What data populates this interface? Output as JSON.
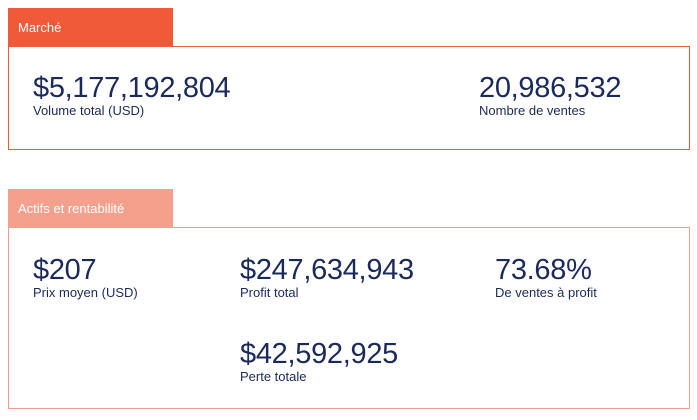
{
  "market": {
    "tab_label": "Marché",
    "total_volume": {
      "value": "$5,177,192,804",
      "label": "Volume total (USD)"
    },
    "sales_count": {
      "value": "20,986,532",
      "label": "Nombre de ventes"
    }
  },
  "assets": {
    "tab_label": "Actifs et rentabilité",
    "avg_price": {
      "value": "$207",
      "label": "Prix moyen (USD)"
    },
    "total_profit": {
      "value": "$247,634,943",
      "label": "Profit total"
    },
    "profit_ratio": {
      "value": "73.68%",
      "label": "De ventes à profit"
    },
    "total_loss": {
      "value": "$42,592,925",
      "label": "Perte totale"
    }
  },
  "colors": {
    "accent": "#f15a38",
    "accent_light": "#f4a08c",
    "text": "#1b2a5c"
  }
}
